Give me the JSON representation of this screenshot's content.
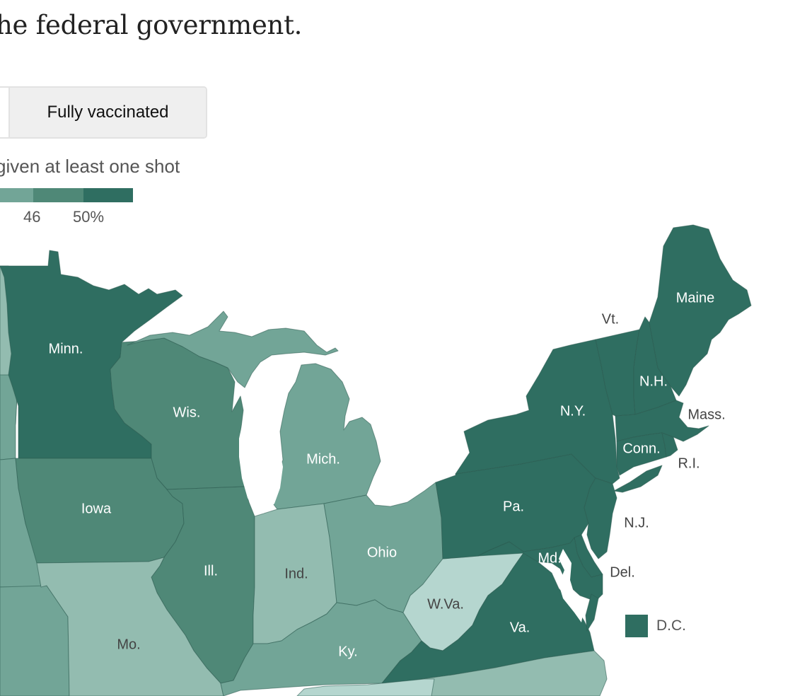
{
  "headline": "he federal government.",
  "toggle": {
    "active_label": "Fully vaccinated"
  },
  "legend": {
    "title": "given at least one shot",
    "colors": [
      "#93bcb0",
      "#72a597",
      "#4f8877",
      "#2f6e61"
    ],
    "ticks": [
      "46",
      "50%"
    ]
  },
  "colors": {
    "lightest": "#b5d6cf",
    "light": "#93bcb0",
    "mid": "#72a597",
    "dark": "#4f8877",
    "darkest": "#2f6e61",
    "water": "#ffffff",
    "border": "#2a5a4f",
    "label_light": "#ffffff",
    "label_dark": "#444444"
  },
  "states": [
    {
      "id": "minnesota",
      "label": "Minn.",
      "level": "darkest"
    },
    {
      "id": "wisconsin",
      "label": "Wis.",
      "level": "dark"
    },
    {
      "id": "michigan",
      "label": "Mich.",
      "level": "mid"
    },
    {
      "id": "iowa",
      "label": "Iowa",
      "level": "dark"
    },
    {
      "id": "illinois",
      "label": "Ill.",
      "level": "dark"
    },
    {
      "id": "indiana",
      "label": "Ind.",
      "level": "light"
    },
    {
      "id": "ohio",
      "label": "Ohio",
      "level": "mid"
    },
    {
      "id": "missouri",
      "label": "Mo.",
      "level": "light"
    },
    {
      "id": "kentucky",
      "label": "Ky.",
      "level": "mid"
    },
    {
      "id": "west-virginia",
      "label": "W.Va.",
      "level": "lightest"
    },
    {
      "id": "virginia",
      "label": "Va.",
      "level": "darkest"
    },
    {
      "id": "pennsylvania",
      "label": "Pa.",
      "level": "darkest"
    },
    {
      "id": "new-york",
      "label": "N.Y.",
      "level": "darkest"
    },
    {
      "id": "vermont",
      "label": "Vt.",
      "level": "darkest"
    },
    {
      "id": "new-hampshire",
      "label": "N.H.",
      "level": "darkest"
    },
    {
      "id": "maine",
      "label": "Maine",
      "level": "darkest"
    },
    {
      "id": "massachusetts",
      "label": "Mass.",
      "level": "darkest"
    },
    {
      "id": "connecticut",
      "label": "Conn.",
      "level": "darkest"
    },
    {
      "id": "rhode-island",
      "label": "R.I.",
      "level": "darkest"
    },
    {
      "id": "new-jersey",
      "label": "N.J.",
      "level": "darkest"
    },
    {
      "id": "delaware",
      "label": "Del.",
      "level": "darkest"
    },
    {
      "id": "maryland",
      "label": "Md.",
      "level": "darkest"
    }
  ],
  "dc": {
    "label": "D.C.",
    "level": "darkest"
  }
}
